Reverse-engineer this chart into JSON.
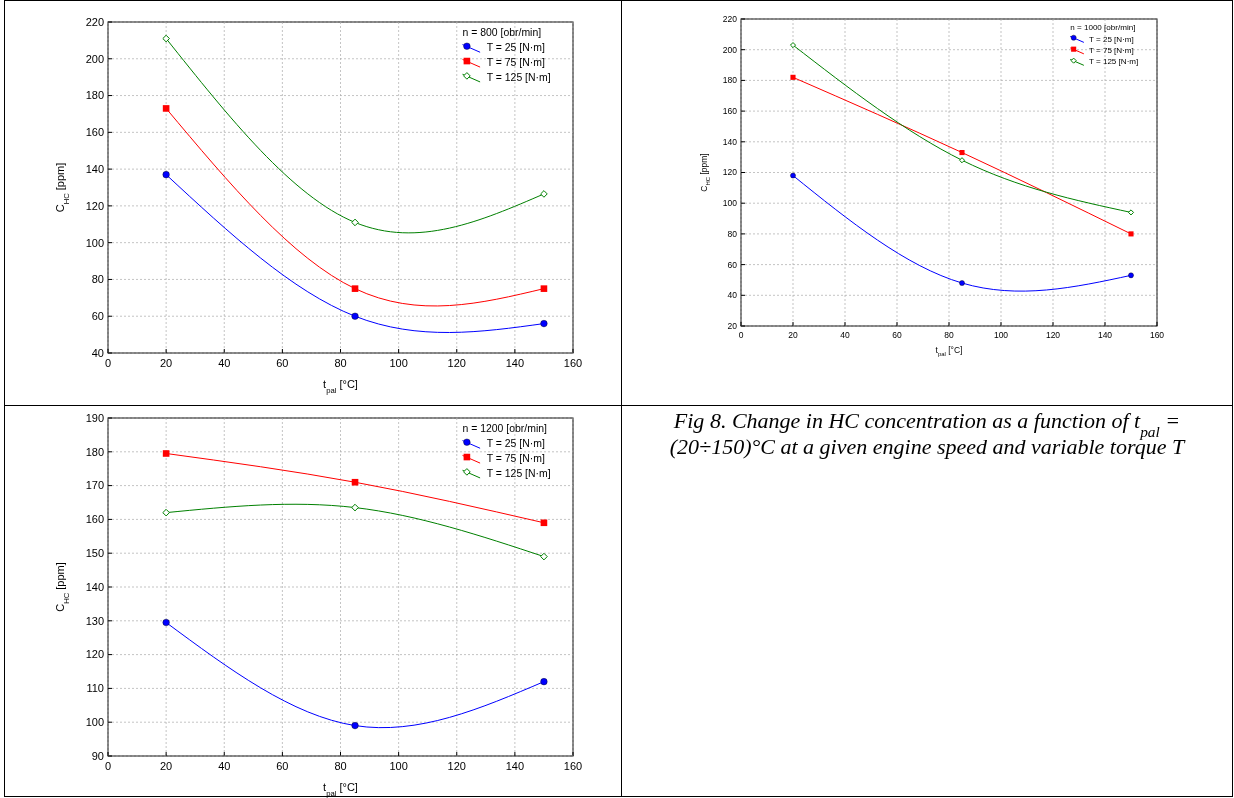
{
  "chart_data": [
    {
      "type": "line",
      "xlabel": "t$_{pal}$ [°C]",
      "ylabel": "C$_{HC}$ [ppm]",
      "legend_title": "n = 800 [obr/min]",
      "legend": "top right",
      "grid": true,
      "xlim": [
        0,
        160
      ],
      "xticks": [
        0,
        20,
        40,
        60,
        80,
        100,
        120,
        140,
        160
      ],
      "ylim": [
        40,
        220
      ],
      "yticks": [
        40,
        60,
        80,
        100,
        120,
        140,
        160,
        180,
        200,
        220
      ],
      "x": [
        20,
        85,
        150
      ],
      "series": [
        {
          "name": "T = 25 [N·m]",
          "color": "#0000ff",
          "marker": "circle",
          "values": [
            137,
            60,
            56
          ]
        },
        {
          "name": "T = 75 [N·m]",
          "color": "#ff0000",
          "marker": "square",
          "values": [
            173,
            75,
            75
          ]
        },
        {
          "name": "T = 125 [N·m]",
          "color": "#008000",
          "marker": "diamond",
          "values": [
            211,
            111,
            126.5
          ]
        }
      ]
    },
    {
      "type": "line",
      "xlabel": "t$_{pal}$ [°C]",
      "ylabel": "C$_{HC}$ [ppm]",
      "legend_title": "n = 1000 [obr/min]",
      "legend": "top right",
      "grid": true,
      "xlim": [
        0,
        160
      ],
      "xticks": [
        0,
        20,
        40,
        60,
        80,
        100,
        120,
        140,
        160
      ],
      "ylim": [
        20,
        220
      ],
      "yticks": [
        20,
        40,
        60,
        80,
        100,
        120,
        140,
        160,
        180,
        200,
        220
      ],
      "x": [
        20,
        85,
        150
      ],
      "series": [
        {
          "name": "T = 25 [N·m]",
          "color": "#0000ff",
          "marker": "circle",
          "values": [
            118,
            48,
            53
          ]
        },
        {
          "name": "T = 75 [N·m]",
          "color": "#ff0000",
          "marker": "square",
          "values": [
            182,
            133,
            80
          ]
        },
        {
          "name": "T = 125 [N·m]",
          "color": "#008000",
          "marker": "diamond",
          "values": [
            203,
            128,
            94
          ]
        }
      ]
    },
    {
      "type": "line",
      "xlabel": "t$_{pal}$ [°C]",
      "ylabel": "C$_{HC}$ [ppm]",
      "legend_title": "n = 1200 [obr/min]",
      "legend": "top right",
      "grid": true,
      "xlim": [
        0,
        160
      ],
      "xticks": [
        0,
        20,
        40,
        60,
        80,
        100,
        120,
        140,
        160
      ],
      "ylim": [
        90,
        190
      ],
      "yticks": [
        90,
        100,
        110,
        120,
        130,
        140,
        150,
        160,
        170,
        180,
        190
      ],
      "x": [
        20,
        85,
        150
      ],
      "series": [
        {
          "name": "T = 25 [N·m]",
          "color": "#0000ff",
          "marker": "circle",
          "values": [
            129.5,
            99,
            112
          ]
        },
        {
          "name": "T = 75 [N·m]",
          "color": "#ff0000",
          "marker": "square",
          "values": [
            179.5,
            171,
            159
          ]
        },
        {
          "name": "T = 125 [N·m]",
          "color": "#008000",
          "marker": "diamond",
          "values": [
            162,
            163.5,
            149
          ]
        }
      ]
    },
    {
      "type": "other",
      "title": "Fig 8. Change in HC concentration as a function of t$_{pal}$ = (20÷150)°C at a given engine speed and variable torque T"
    }
  ]
}
